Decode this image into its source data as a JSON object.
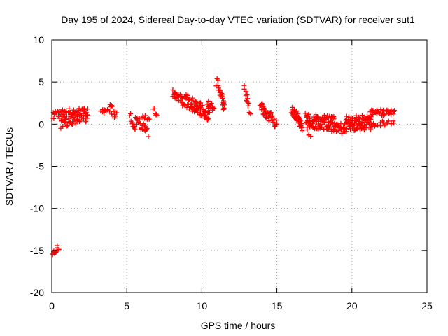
{
  "chart_data": {
    "type": "scatter",
    "title": "Day 195 of 2024, Sidereal Day-to-day VTEC variation (SDTVAR) for receiver sut1",
    "xlabel": "GPS time / hours",
    "ylabel": "SDTVAR / TECUs",
    "xlim": [
      0,
      25
    ],
    "ylim": [
      -20,
      10
    ],
    "xticks": [
      0,
      5,
      10,
      15,
      20,
      25
    ],
    "yticks": [
      -20,
      -15,
      -10,
      -5,
      0,
      5,
      10
    ],
    "grid": true,
    "marker": "+",
    "series_color": "#ff0000",
    "clusters": [
      {
        "x_start": 0.0,
        "x_end": 0.45,
        "y_start": -15.6,
        "y_end": -14.6,
        "spread": 0.3,
        "count": 14
      },
      {
        "x_start": 0.0,
        "x_end": 0.6,
        "y_start": 1.0,
        "y_end": 1.2,
        "spread": 0.5,
        "count": 14
      },
      {
        "x_start": 0.6,
        "x_end": 2.4,
        "y_start": 1.3,
        "y_end": 1.5,
        "spread": 0.5,
        "count": 50
      },
      {
        "x_start": 0.6,
        "x_end": 2.4,
        "y_start": 0.0,
        "y_end": 0.8,
        "spread": 0.5,
        "count": 40
      },
      {
        "x_start": 3.3,
        "x_end": 3.8,
        "y_start": 1.6,
        "y_end": 1.5,
        "spread": 0.3,
        "count": 10
      },
      {
        "x_start": 3.9,
        "x_end": 4.3,
        "y_start": 2.0,
        "y_end": 1.0,
        "spread": 0.5,
        "count": 12
      },
      {
        "x_start": 5.2,
        "x_end": 5.6,
        "y_start": 0.9,
        "y_end": -1.0,
        "spread": 0.4,
        "count": 10
      },
      {
        "x_start": 5.6,
        "x_end": 6.4,
        "y_start": 0.5,
        "y_end": -1.0,
        "spread": 0.5,
        "count": 22
      },
      {
        "x_start": 5.8,
        "x_end": 6.5,
        "y_start": 1.0,
        "y_end": 0.8,
        "spread": 0.3,
        "count": 10
      },
      {
        "x_start": 6.8,
        "x_end": 7.0,
        "y_start": 1.6,
        "y_end": 1.0,
        "spread": 0.4,
        "count": 6
      },
      {
        "x_start": 8.1,
        "x_end": 8.7,
        "y_start": 3.6,
        "y_end": 3.0,
        "spread": 0.5,
        "count": 25
      },
      {
        "x_start": 8.7,
        "x_end": 10.5,
        "y_start": 3.0,
        "y_end": 1.2,
        "spread": 0.8,
        "count": 90
      },
      {
        "x_start": 10.4,
        "x_end": 10.8,
        "y_start": 2.4,
        "y_end": 2.0,
        "spread": 0.4,
        "count": 12
      },
      {
        "x_start": 11.0,
        "x_end": 11.5,
        "y_start": 5.0,
        "y_end": 2.0,
        "spread": 0.6,
        "count": 26
      },
      {
        "x_start": 12.8,
        "x_end": 13.1,
        "y_start": 4.2,
        "y_end": 2.5,
        "spread": 0.4,
        "count": 10
      },
      {
        "x_start": 13.0,
        "x_end": 13.2,
        "y_start": 2.6,
        "y_end": 1.0,
        "spread": 0.3,
        "count": 4
      },
      {
        "x_start": 13.9,
        "x_end": 14.5,
        "y_start": 2.2,
        "y_end": 0.5,
        "spread": 0.5,
        "count": 24
      },
      {
        "x_start": 14.5,
        "x_end": 15.0,
        "y_start": 1.2,
        "y_end": -0.2,
        "spread": 0.5,
        "count": 16
      },
      {
        "x_start": 16.0,
        "x_end": 16.6,
        "y_start": 1.8,
        "y_end": 0.2,
        "spread": 0.7,
        "count": 30
      },
      {
        "x_start": 16.4,
        "x_end": 16.7,
        "y_start": 0.8,
        "y_end": -0.3,
        "spread": 0.5,
        "count": 10
      },
      {
        "x_start": 16.9,
        "x_end": 18.9,
        "y_start": 0.4,
        "y_end": 0.0,
        "spread": 0.9,
        "count": 110
      },
      {
        "x_start": 17.0,
        "x_end": 17.2,
        "y_start": -0.6,
        "y_end": -1.6,
        "spread": 0.3,
        "count": 5
      },
      {
        "x_start": 18.9,
        "x_end": 19.6,
        "y_start": -0.3,
        "y_end": -0.6,
        "spread": 0.6,
        "count": 26
      },
      {
        "x_start": 19.6,
        "x_end": 21.3,
        "y_start": 0.1,
        "y_end": 0.2,
        "spread": 0.9,
        "count": 100
      },
      {
        "x_start": 21.2,
        "x_end": 22.8,
        "y_start": 1.3,
        "y_end": 1.4,
        "spread": 0.4,
        "count": 40
      },
      {
        "x_start": 21.3,
        "x_end": 22.8,
        "y_start": 0.0,
        "y_end": 0.2,
        "spread": 0.3,
        "count": 20
      }
    ]
  }
}
